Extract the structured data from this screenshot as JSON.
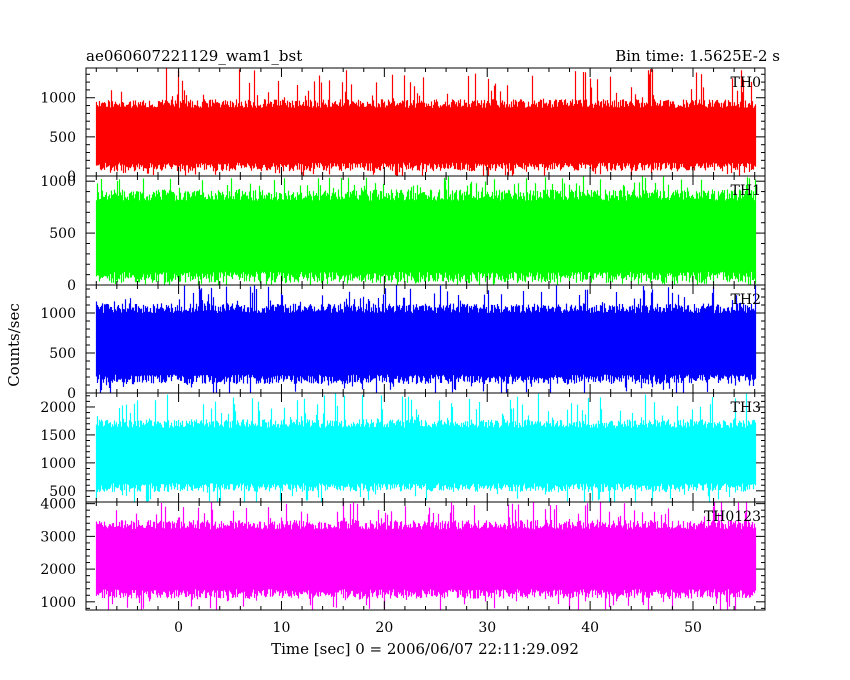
{
  "header": {
    "title": "ae060607221129_wam1_bst",
    "bin_time": "Bin time: 1.5625E-2 s"
  },
  "chart_data": {
    "type": "line",
    "title": "ae060607221129_wam1_bst",
    "xlabel": "Time [sec] 0 = 2006/06/07 22:11:29.092",
    "ylabel": "Counts/sec",
    "xlim": [
      -9,
      57
    ],
    "data_x_range": [
      -8,
      56
    ],
    "x_ticks": [
      0,
      10,
      20,
      30,
      40,
      50
    ],
    "panels": [
      {
        "name": "TH0",
        "color": "#ff0000",
        "ylim": [
          0,
          1380
        ],
        "y_ticks": [
          0,
          500,
          1000
        ],
        "typical_range": [
          60,
          980
        ],
        "spike_max": 1380
      },
      {
        "name": "TH1",
        "color": "#00ff00",
        "ylim": [
          0,
          1050
        ],
        "y_ticks": [
          0,
          500,
          1000
        ],
        "typical_range": [
          20,
          920
        ],
        "spike_max": 1050
      },
      {
        "name": "TH2",
        "color": "#0000ff",
        "ylim": [
          0,
          1350
        ],
        "y_ticks": [
          0,
          500,
          1000
        ],
        "typical_range": [
          110,
          1120
        ],
        "spike_max": 1350
      },
      {
        "name": "TH3",
        "color": "#00ffff",
        "ylim": [
          300,
          2250
        ],
        "y_ticks": [
          500,
          1000,
          1500,
          2000
        ],
        "typical_range": [
          480,
          1780
        ],
        "spike_max": 2250
      },
      {
        "name": "TH0123",
        "color": "#ff00ff",
        "ylim": [
          750,
          4050
        ],
        "y_ticks": [
          1000,
          2000,
          3000,
          4000
        ],
        "typical_range": [
          1100,
          3500
        ],
        "spike_max": 4050
      }
    ]
  }
}
